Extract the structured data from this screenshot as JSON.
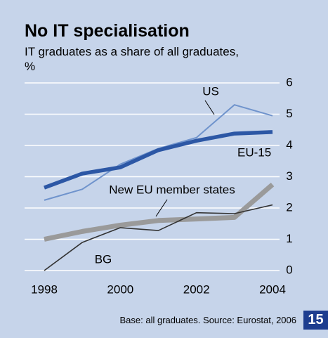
{
  "chart_data": {
    "type": "line",
    "title": "No IT specialisation",
    "subtitle": "IT graduates as a share of all graduates, %",
    "x": [
      1998,
      1999,
      2000,
      2001,
      2002,
      2003,
      2004
    ],
    "series": [
      {
        "name": "US",
        "color": "#6f93cc",
        "values": [
          2.25,
          2.6,
          3.4,
          3.9,
          4.25,
          5.3,
          4.95
        ]
      },
      {
        "name": "EU-15",
        "color": "#2c57a5",
        "values": [
          2.65,
          3.1,
          3.3,
          3.85,
          4.15,
          4.38,
          4.43
        ]
      },
      {
        "name": "New EU member states",
        "color": "#9a9a9a",
        "values": [
          1.0,
          1.25,
          1.45,
          1.6,
          1.65,
          1.7,
          2.75
        ]
      },
      {
        "name": "BG",
        "color": "#333333",
        "values": [
          0,
          0.9,
          1.37,
          1.28,
          1.85,
          1.82,
          2.1
        ]
      }
    ],
    "xlim": [
      1998,
      2004
    ],
    "xticks": [
      1998,
      2000,
      2002,
      2004
    ],
    "ylim": [
      0,
      6
    ],
    "yticks": [
      0,
      1,
      2,
      3,
      4,
      5,
      6
    ],
    "grid": true,
    "source": "Base: all graduates. Source: Eurostat, 2006"
  },
  "page_number": 15
}
